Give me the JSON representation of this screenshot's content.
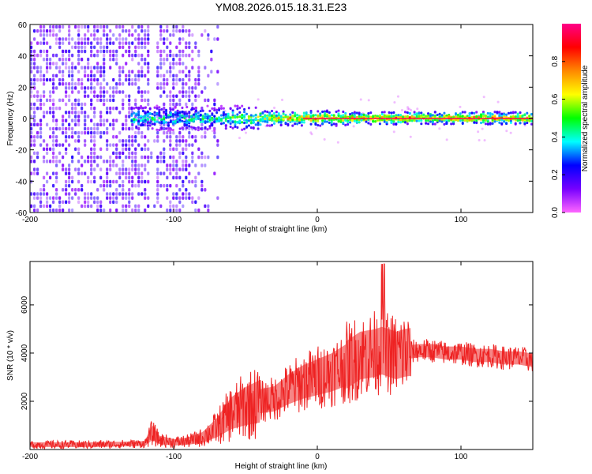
{
  "figure": {
    "title": "YM08.2026.015.18.31.E23"
  },
  "colors": {
    "snr_line": "#ee2222",
    "frame": "#000000",
    "background": "#ffffff"
  },
  "chart_data": [
    {
      "type": "heatmap",
      "title": "YM08.2026.015.18.31.E23",
      "xlabel": "Height of straight line (km)",
      "ylabel": "Frequency (Hz)",
      "xlim": [
        -200,
        150
      ],
      "ylim": [
        -60,
        60
      ],
      "xticks": [
        -200,
        -100,
        0,
        100
      ],
      "yticks": [
        -60,
        -40,
        -20,
        0,
        20,
        40,
        60
      ],
      "grid": false,
      "colorbar": {
        "label": "Normalized spectral amplitude",
        "range": [
          0,
          1
        ],
        "ticks": [
          0.0,
          0.2,
          0.4,
          0.6,
          0.8
        ],
        "colormap": [
          "#ff66ff",
          "#7700ff",
          "#0000ff",
          "#00ffff",
          "#00ff00",
          "#ffff00",
          "#ff8800",
          "#ff0000",
          "#ff0088"
        ]
      },
      "features": {
        "center_frequency_hz": 0,
        "noise_region_x": [
          -200,
          -70
        ],
        "signal_region_x": [
          -130,
          150
        ],
        "peak_band_x": [
          -10,
          150
        ]
      }
    },
    {
      "type": "line",
      "xlabel": "Height of straight line (km)",
      "ylabel": "SNR (10 * v/v)",
      "xlim": [
        -200,
        150
      ],
      "ylim": [
        0,
        7800
      ],
      "xticks": [
        -200,
        -100,
        0,
        100
      ],
      "yticks": [
        2000,
        4000,
        6000
      ],
      "grid": false,
      "series": [
        {
          "x": [
            -200,
            -180,
            -160,
            -140,
            -120,
            -115,
            -110,
            -100,
            -90,
            -80,
            -70,
            -60,
            -50,
            -40,
            -30,
            -20,
            -10,
            0,
            10,
            20,
            30,
            40,
            45,
            50,
            55,
            60,
            70,
            80,
            90,
            100,
            110,
            120,
            130,
            140,
            150
          ],
          "y": [
            200,
            200,
            200,
            220,
            250,
            700,
            400,
            300,
            350,
            500,
            900,
            1500,
            1800,
            2000,
            2100,
            2500,
            2800,
            3000,
            3200,
            3500,
            3900,
            4000,
            4100,
            4000,
            3900,
            4000,
            4100,
            4100,
            4000,
            4000,
            3900,
            3900,
            3800,
            3800,
            3700
          ]
        }
      ]
    }
  ]
}
